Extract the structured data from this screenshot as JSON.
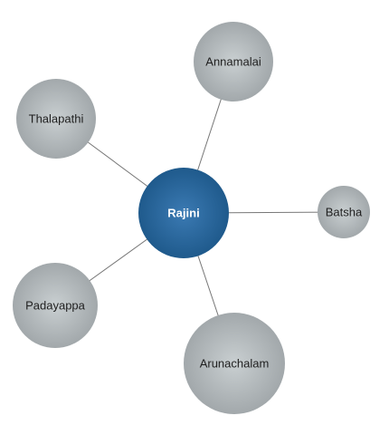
{
  "graph": {
    "center": {
      "label": "Rajini",
      "color": "#2a6496"
    },
    "leaves": [
      {
        "label": "Annamalai"
      },
      {
        "label": "Thalapathi"
      },
      {
        "label": "Batsha"
      },
      {
        "label": "Padayappa"
      },
      {
        "label": "Arunachalam"
      }
    ],
    "leaf_color": "#aab0b3",
    "link_color": "#777777"
  }
}
